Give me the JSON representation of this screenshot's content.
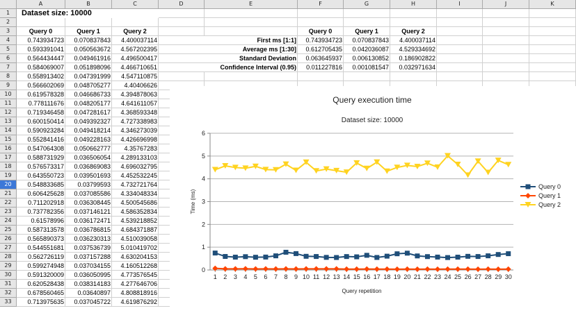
{
  "columns": [
    "A",
    "B",
    "C",
    "D",
    "E",
    "F",
    "G",
    "H",
    "I",
    "J",
    "K"
  ],
  "rows_count": 33,
  "selected_row": 20,
  "title": "Dataset size: 10000",
  "headers": [
    "Query 0",
    "Query 1",
    "Query 2"
  ],
  "data": [
    [
      "0.743934723",
      "0.070837843",
      "4.400037114"
    ],
    [
      "0.593391041",
      "0.050563672",
      "4.567202395"
    ],
    [
      "0.564434447",
      "0.049461916",
      "4.496500417"
    ],
    [
      "0.584069007",
      "0.051898096",
      "4.466710651"
    ],
    [
      "0.558913402",
      "0.047391999",
      "4.547110875"
    ],
    [
      "0.566602069",
      "0.048705277",
      "4.40406626"
    ],
    [
      "0.619578328",
      "0.046686733",
      "4.394878063"
    ],
    [
      "0.778111676",
      "0.048205177",
      "4.641611057"
    ],
    [
      "0.719346458",
      "0.047281617",
      "4.368593348"
    ],
    [
      "0.600150414",
      "0.049392327",
      "4.727338983"
    ],
    [
      "0.590923284",
      "0.049418214",
      "4.346273039"
    ],
    [
      "0.552841416",
      "0.049228163",
      "4.426696998"
    ],
    [
      "0.547064308",
      "0.050662777",
      "4.35767283"
    ],
    [
      "0.588731929",
      "0.036506054",
      "4.289133103"
    ],
    [
      "0.576573317",
      "0.036869083",
      "4.696032795"
    ],
    [
      "0.643550723",
      "0.039501693",
      "4.452532245"
    ],
    [
      "0.548833685",
      "0.03799593",
      "4.732721764"
    ],
    [
      "0.606425628",
      "0.037085586",
      "4.334048334"
    ],
    [
      "0.711202918",
      "0.036308445",
      "4.500545686"
    ],
    [
      "0.737782356",
      "0.037146121",
      "4.586352834"
    ],
    [
      "0.61578996",
      "0.036172471",
      "4.539218852"
    ],
    [
      "0.587313578",
      "0.036786815",
      "4.684371887"
    ],
    [
      "0.565890373",
      "0.036230313",
      "4.510039058"
    ],
    [
      "0.544551681",
      "0.037536739",
      "5.010419702"
    ],
    [
      "0.562726119",
      "0.037157288",
      "4.630204153"
    ],
    [
      "0.599274948",
      "0.037034155",
      "4.160512268"
    ],
    [
      "0.591320009",
      "0.036050995",
      "4.773576545"
    ],
    [
      "0.620528438",
      "0.038314183",
      "4.277646706"
    ],
    [
      "0.678560465",
      "0.03640897",
      "4.808818916"
    ],
    [
      "0.713975635",
      "0.037045722",
      "4.619876292"
    ]
  ],
  "summary": {
    "headers": [
      "Query 0",
      "Query 1",
      "Query 2"
    ],
    "rows": [
      {
        "label": "First ms [1:1]",
        "values": [
          "0.743934723",
          "0.070837843",
          "4.400037114"
        ]
      },
      {
        "label": "Average ms [1:30]",
        "values": [
          "0.612705435",
          "0.042036087",
          "4.529334692"
        ]
      },
      {
        "label": "Standard Deviation",
        "values": [
          "0.063645937",
          "0.006130852",
          "0.186902822"
        ]
      },
      {
        "label": "Confidence Interval (0.95)",
        "values": [
          "0.011227816",
          "0.001081547",
          "0.032971634"
        ]
      }
    ]
  },
  "chart_data": {
    "type": "line",
    "title": "Query execution time",
    "subtitle": "Dataset size: 10000",
    "xlabel": "Query repetition",
    "ylabel": "Time (ms)",
    "ylim": [
      0,
      6
    ],
    "yticks": [
      "0",
      "1",
      "2",
      "3",
      "4",
      "5",
      "6"
    ],
    "legend": "right",
    "x": [
      1,
      2,
      3,
      4,
      5,
      6,
      7,
      8,
      9,
      10,
      11,
      12,
      13,
      14,
      15,
      16,
      17,
      18,
      19,
      20,
      21,
      22,
      23,
      24,
      25,
      26,
      27,
      28,
      29,
      30
    ],
    "series": [
      {
        "name": "Query 0",
        "color": "#1f4e79",
        "marker": "square",
        "values": [
          0.744,
          0.593,
          0.564,
          0.584,
          0.559,
          0.567,
          0.62,
          0.778,
          0.719,
          0.6,
          0.591,
          0.553,
          0.547,
          0.589,
          0.577,
          0.644,
          0.549,
          0.606,
          0.711,
          0.738,
          0.616,
          0.587,
          0.566,
          0.545,
          0.563,
          0.599,
          0.591,
          0.621,
          0.679,
          0.714
        ]
      },
      {
        "name": "Query 1",
        "color": "#ff4500",
        "marker": "diamond",
        "values": [
          0.071,
          0.051,
          0.049,
          0.052,
          0.047,
          0.049,
          0.047,
          0.048,
          0.047,
          0.049,
          0.049,
          0.049,
          0.051,
          0.037,
          0.037,
          0.04,
          0.038,
          0.037,
          0.036,
          0.037,
          0.036,
          0.037,
          0.036,
          0.038,
          0.037,
          0.037,
          0.036,
          0.038,
          0.036,
          0.037
        ]
      },
      {
        "name": "Query 2",
        "color": "#ffd320",
        "marker": "triangle-down",
        "values": [
          4.4,
          4.567,
          4.497,
          4.467,
          4.547,
          4.404,
          4.395,
          4.642,
          4.369,
          4.727,
          4.346,
          4.427,
          4.358,
          4.289,
          4.696,
          4.453,
          4.733,
          4.334,
          4.501,
          4.586,
          4.539,
          4.684,
          4.51,
          5.01,
          4.63,
          4.161,
          4.774,
          4.278,
          4.809,
          4.62
        ]
      }
    ]
  }
}
